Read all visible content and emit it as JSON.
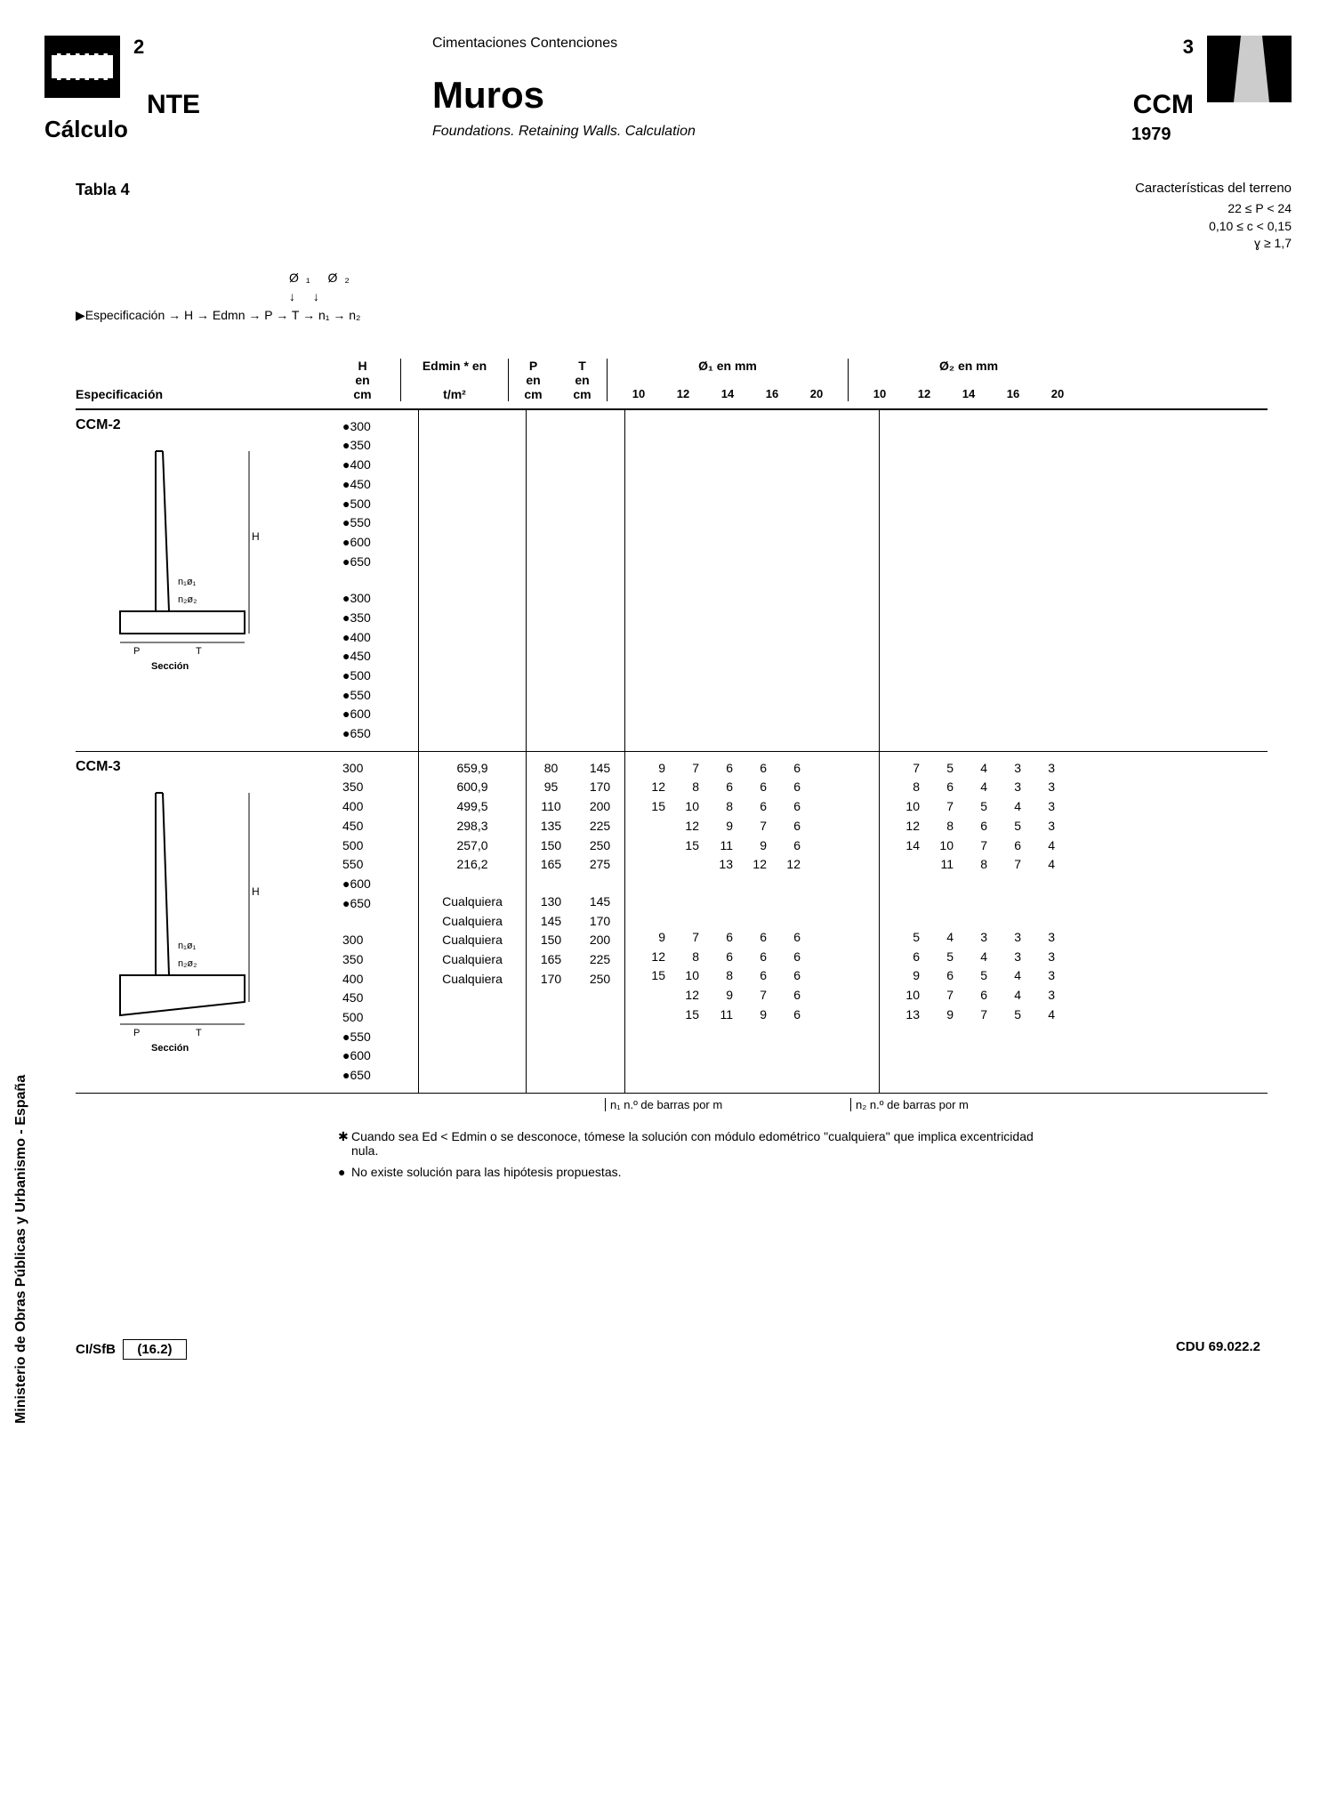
{
  "header": {
    "page_left": "2",
    "nte": "NTE",
    "calculo": "Cálculo",
    "breadcrumb": "Cimentaciones Contenciones",
    "title": "Muros",
    "subtitle": "Foundations. Retaining Walls. Calculation",
    "page_right": "3",
    "ccm": "CCM",
    "year": "1979"
  },
  "tabla": "Tabla 4",
  "caracteristicas": {
    "title": "Características del terreno",
    "line1": "22 ≤ P < 24",
    "line2": "0,10 ≤ c < 0,15",
    "line3": "ɣ ≥ 1,7"
  },
  "flow": {
    "arrows_top": "↓   ↓",
    "phi_row": "Ø₁   Ø₂",
    "arrows_mid": "↓    ↓",
    "main": "▶Especificación → H → Edmn   → P → T → n₁ → n₂"
  },
  "columns": {
    "especificacion": "Especificación",
    "h": "H",
    "h_unit1": "en",
    "h_unit2": "cm",
    "e": "Edmin * en",
    "e_unit": "t/m²",
    "p": "P",
    "p_unit1": "en",
    "p_unit2": "cm",
    "t": "T",
    "t_unit1": "en",
    "t_unit2": "cm",
    "phi1": "Ø₁ en mm",
    "phi2": "Ø₂ en mm",
    "phi_vals": [
      "10",
      "12",
      "14",
      "16",
      "20"
    ]
  },
  "ccm2": {
    "name": "CCM-2",
    "seccion": "Sección",
    "h_block1": [
      "●300",
      "●350",
      "●400",
      "●450",
      "●500",
      "●550",
      "●600",
      "●650"
    ],
    "h_block2": [
      "●300",
      "●350",
      "●400",
      "●450",
      "●500",
      "●550",
      "●600",
      "●650"
    ]
  },
  "ccm3": {
    "name": "CCM-3",
    "seccion": "Sección",
    "block1": {
      "h": [
        "300",
        "350",
        "400",
        "450",
        "500",
        "550",
        "●600",
        "●650"
      ],
      "e": [
        "659,9",
        "600,9",
        "499,5",
        "298,3",
        "257,0",
        "216,2"
      ],
      "p": [
        "80",
        "95",
        "110",
        "135",
        "150",
        "165"
      ],
      "t": [
        "145",
        "170",
        "200",
        "225",
        "250",
        "275"
      ],
      "phi1": [
        [
          "9",
          "7",
          "6",
          "6",
          "6"
        ],
        [
          "12",
          "8",
          "6",
          "6",
          "6"
        ],
        [
          "15",
          "10",
          "8",
          "6",
          "6"
        ],
        [
          "",
          "12",
          "9",
          "7",
          "6"
        ],
        [
          "",
          "15",
          "11",
          "9",
          "6"
        ],
        [
          "",
          "",
          "13",
          "12",
          "12"
        ]
      ],
      "phi2": [
        [
          "7",
          "5",
          "4",
          "3",
          "3"
        ],
        [
          "8",
          "6",
          "4",
          "3",
          "3"
        ],
        [
          "10",
          "7",
          "5",
          "4",
          "3"
        ],
        [
          "12",
          "8",
          "6",
          "5",
          "3"
        ],
        [
          "14",
          "10",
          "7",
          "6",
          "4"
        ],
        [
          "",
          "11",
          "8",
          "7",
          "4"
        ]
      ]
    },
    "block2": {
      "h": [
        "300",
        "350",
        "400",
        "450",
        "500",
        "●550",
        "●600",
        "●650"
      ],
      "e": [
        "Cualquiera",
        "Cualquiera",
        "Cualquiera",
        "Cualquiera",
        "Cualquiera"
      ],
      "p": [
        "130",
        "145",
        "150",
        "165",
        "170"
      ],
      "t": [
        "145",
        "170",
        "200",
        "225",
        "250"
      ],
      "phi1": [
        [
          "9",
          "7",
          "6",
          "6",
          "6"
        ],
        [
          "12",
          "8",
          "6",
          "6",
          "6"
        ],
        [
          "15",
          "10",
          "8",
          "6",
          "6"
        ],
        [
          "",
          "12",
          "9",
          "7",
          "6"
        ],
        [
          "",
          "15",
          "11",
          "9",
          "6"
        ]
      ],
      "phi2": [
        [
          "5",
          "4",
          "3",
          "3",
          "3"
        ],
        [
          "6",
          "5",
          "4",
          "3",
          "3"
        ],
        [
          "9",
          "6",
          "5",
          "4",
          "3"
        ],
        [
          "10",
          "7",
          "6",
          "4",
          "3"
        ],
        [
          "13",
          "9",
          "7",
          "5",
          "4"
        ]
      ]
    }
  },
  "table_footer": {
    "n1": "n₁ n.º de barras por m",
    "n2": "n₂ n.º de barras por m"
  },
  "footnotes": {
    "star": "Cuando sea Ed < Edmin o se desconoce, tómese la solución con módulo edométrico \"cualquiera\" que implica excentricidad nula.",
    "bullet": "No existe solución para las hipótesis propuestas."
  },
  "vertical": "Ministerio de Obras Públicas y Urbanismo - España",
  "footer": {
    "cisfb": "CI/SfB",
    "code": "(16.2)",
    "cdu": "CDU 69.022.2"
  },
  "diagram_labels": {
    "h": "H",
    "n1": "n₁ø₁",
    "n2": "n₂ø₂",
    "p": "P",
    "t": "T"
  }
}
